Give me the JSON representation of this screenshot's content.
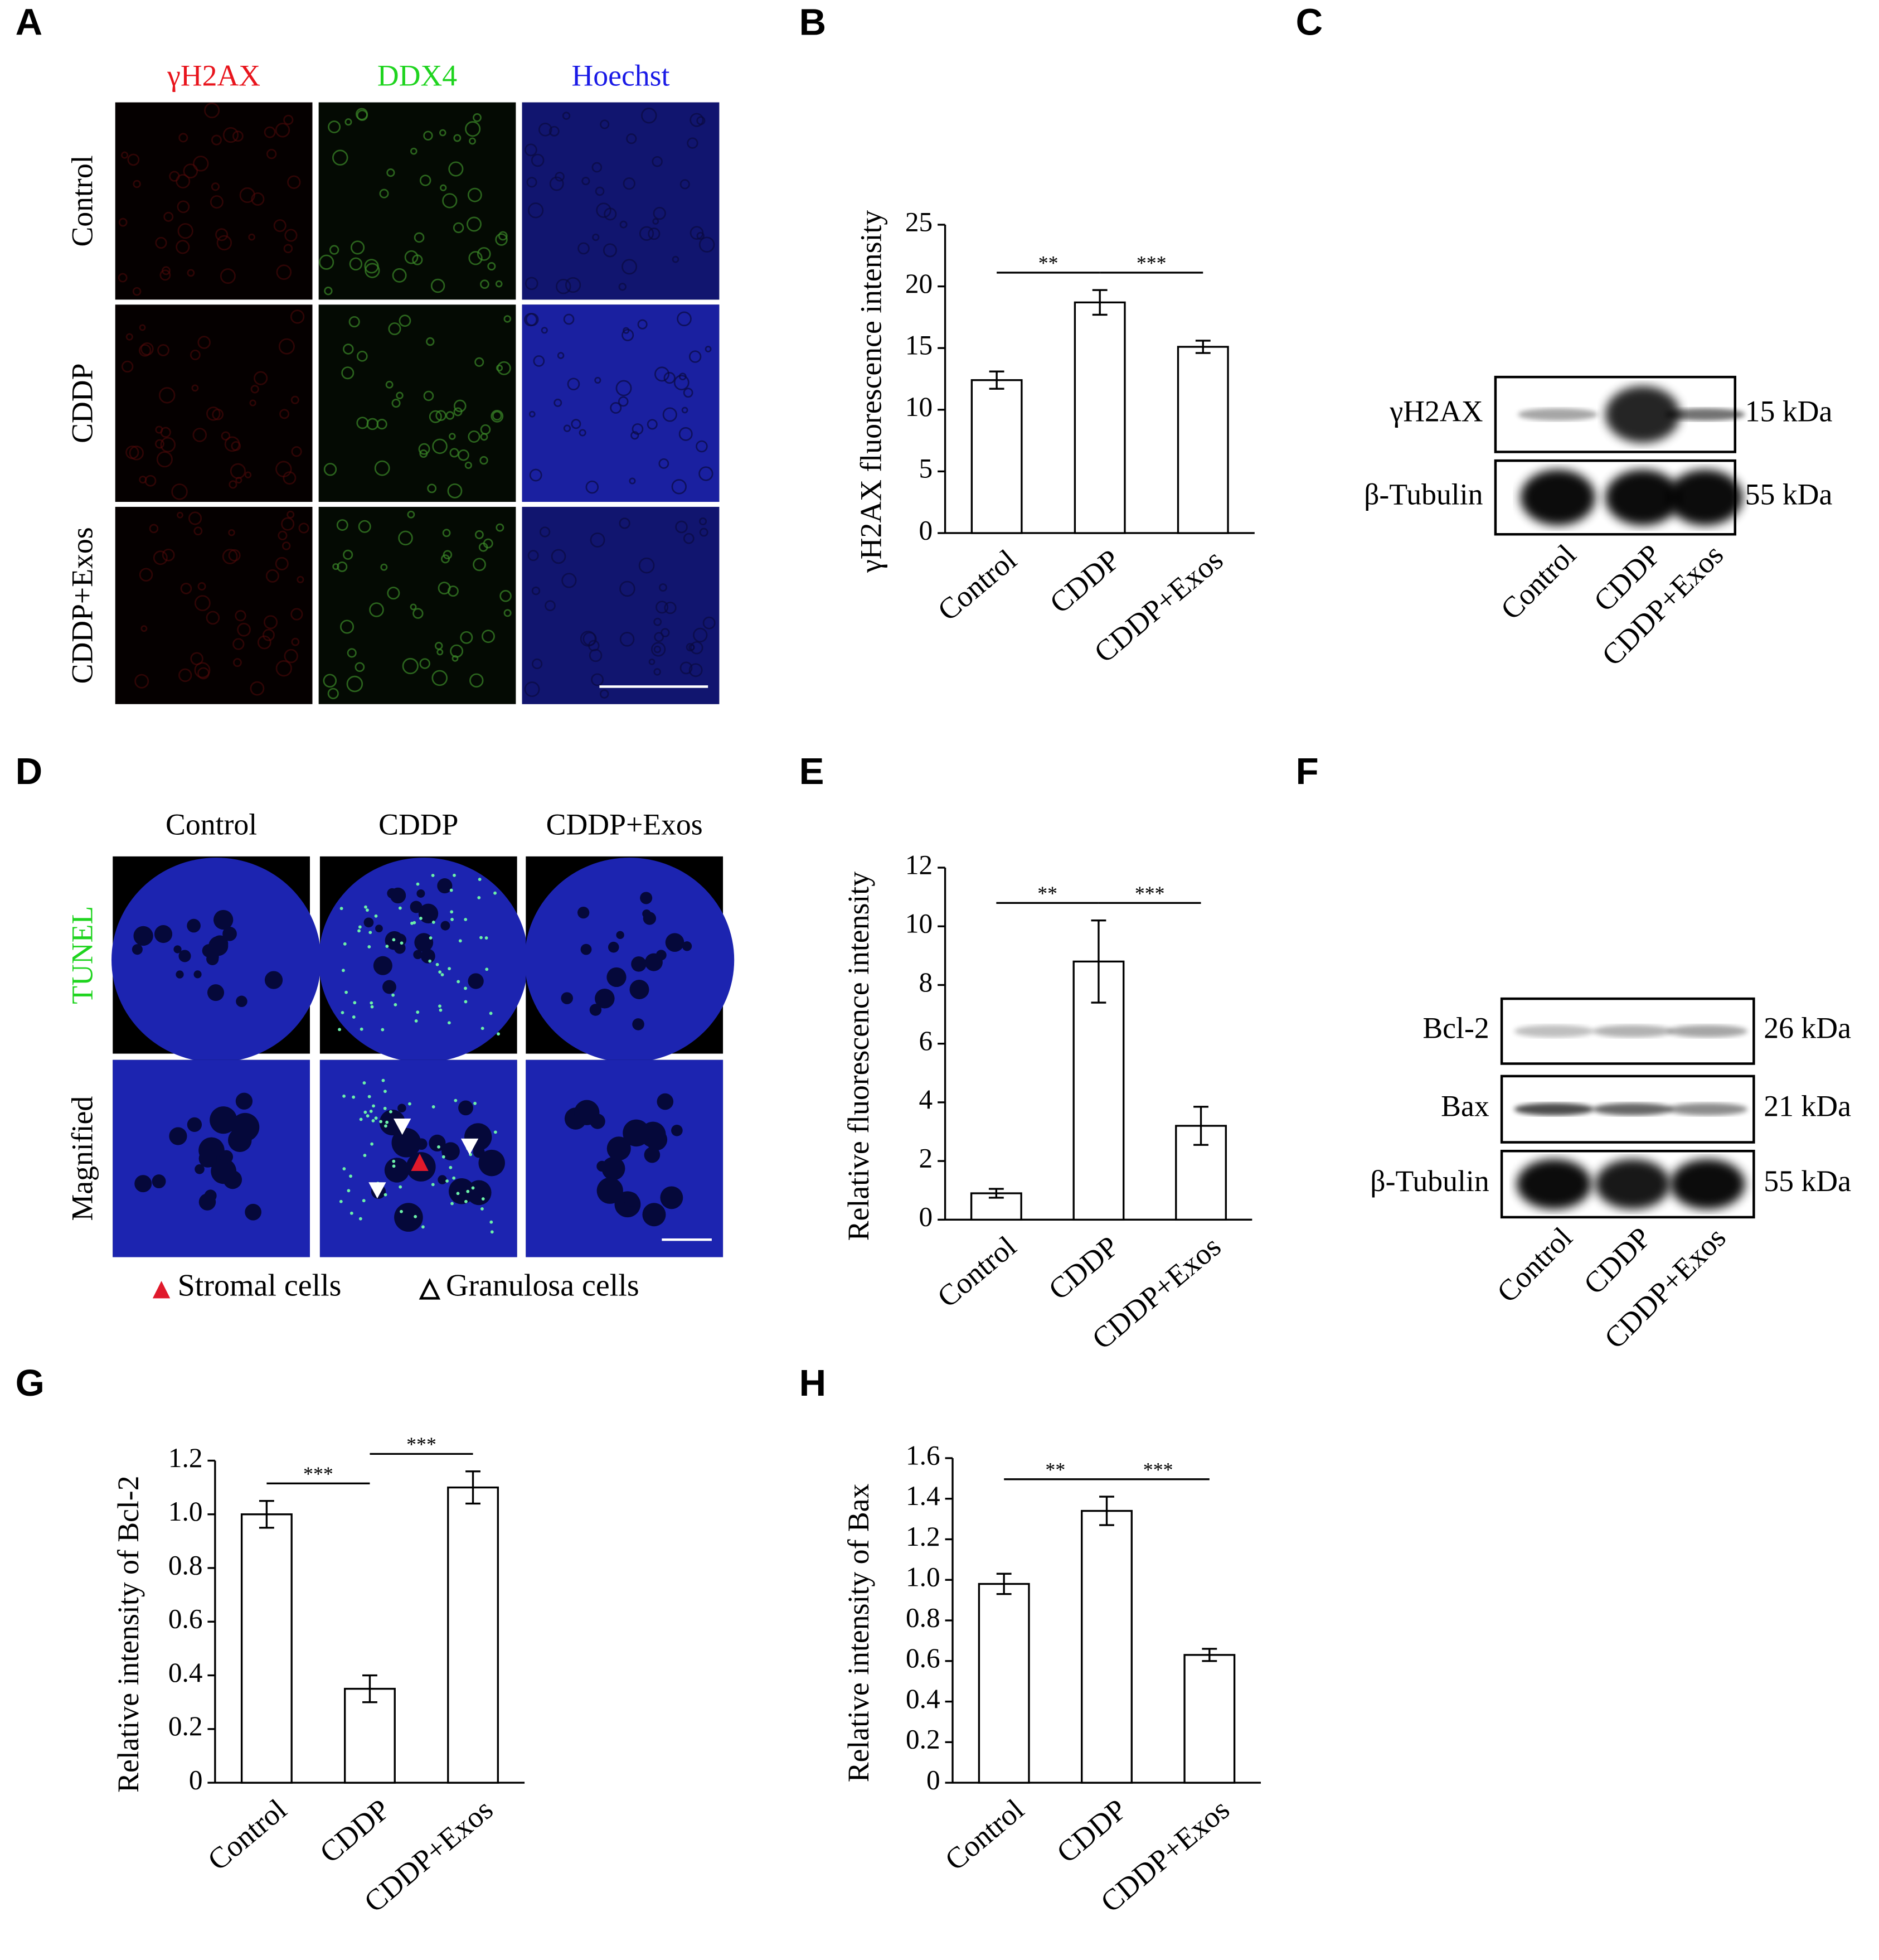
{
  "panel_a": {
    "label": "A",
    "columns": [
      "γH2AX",
      "DDX4",
      "Hoechst"
    ],
    "column_colors": [
      "#e8141c",
      "#1fd41f",
      "#1a1ae6"
    ],
    "rows": [
      "Control",
      "CDDP",
      "CDDP+Exos"
    ]
  },
  "panel_c": {
    "label": "C",
    "bands": [
      "γH2AX",
      "β-Tubulin"
    ],
    "sizes": [
      "15 kDa",
      "55 kDa"
    ],
    "lanes": [
      "Control",
      "CDDP",
      "CDDP+Exos"
    ]
  },
  "panel_d": {
    "label": "D",
    "columns": [
      "Control",
      "CDDP",
      "CDDP+Exos"
    ],
    "row_labels": [
      "TUNEL",
      "Magnified"
    ],
    "legend": [
      "Stromal cells",
      "Granulosa cells"
    ]
  },
  "panel_f": {
    "label": "F",
    "bands": [
      "Bcl-2",
      "Bax",
      "β-Tubulin"
    ],
    "sizes": [
      "26 kDa",
      "21 kDa",
      "55 kDa"
    ],
    "lanes": [
      "Control",
      "CDDP",
      "CDDP+Exos"
    ]
  },
  "chart_data": [
    {
      "type": "bar",
      "label": "B",
      "ylabel": "γH2AX fluorescence intensity",
      "categories": [
        "Control",
        "CDDP",
        "CDDP+Exos"
      ],
      "values": [
        12.4,
        18.7,
        15.1
      ],
      "errors": [
        0.7,
        1.0,
        0.5
      ],
      "ylim": [
        0,
        25
      ],
      "yticks": [
        0,
        5,
        10,
        15,
        20,
        25
      ],
      "bar_color": "#ffffff",
      "annotations": [
        {
          "text": "**",
          "between": [
            0,
            1
          ]
        },
        {
          "text": "***",
          "between": [
            1,
            2
          ]
        }
      ]
    },
    {
      "type": "bar",
      "label": "E",
      "ylabel": "Relative fluorescence intensity",
      "categories": [
        "Control",
        "CDDP",
        "CDDP+Exos"
      ],
      "values": [
        0.9,
        8.8,
        3.2
      ],
      "errors": [
        0.15,
        1.4,
        0.65
      ],
      "ylim": [
        0,
        12
      ],
      "yticks": [
        0,
        2,
        4,
        6,
        8,
        10,
        12
      ],
      "bar_color": "#ffffff",
      "annotations": [
        {
          "text": "**",
          "between": [
            0,
            1
          ]
        },
        {
          "text": "***",
          "between": [
            1,
            2
          ]
        }
      ]
    },
    {
      "type": "bar",
      "label": "G",
      "ylabel": "Relative intensity of Bcl-2",
      "categories": [
        "Control",
        "CDDP",
        "CDDP+Exos"
      ],
      "values": [
        1.0,
        0.35,
        1.1
      ],
      "errors": [
        0.05,
        0.05,
        0.06
      ],
      "ylim": [
        0,
        1.2
      ],
      "yticks": [
        0,
        0.2,
        0.4,
        0.6,
        0.8,
        {
          "value": 1,
          "label": "1.0"
        },
        1.2
      ],
      "bar_color": "#ffffff",
      "annotations": [
        {
          "text": "***",
          "between": [
            0,
            1
          ]
        },
        {
          "text": "***",
          "between": [
            1,
            2
          ]
        }
      ]
    },
    {
      "type": "bar",
      "label": "H",
      "ylabel": "Relative intensity of Bax",
      "categories": [
        "Control",
        "CDDP",
        "CDDP+Exos"
      ],
      "values": [
        0.98,
        1.34,
        0.63
      ],
      "errors": [
        0.05,
        0.07,
        0.03
      ],
      "ylim": [
        0,
        1.6
      ],
      "yticks": [
        0,
        0.2,
        0.4,
        0.6,
        0.8,
        {
          "value": 1,
          "label": "1.0"
        },
        1.2,
        1.4,
        1.6
      ],
      "bar_color": "#ffffff",
      "annotations": [
        {
          "text": "**",
          "between": [
            0,
            1
          ]
        },
        {
          "text": "***",
          "between": [
            1,
            2
          ]
        }
      ]
    }
  ]
}
